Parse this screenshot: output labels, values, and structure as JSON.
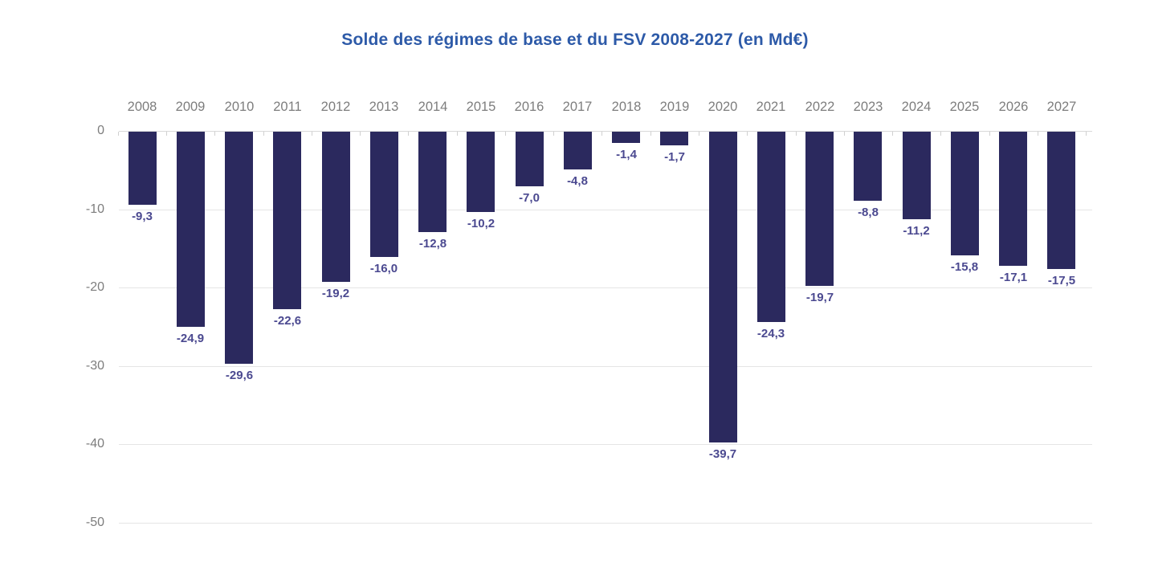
{
  "chart_data": {
    "type": "bar",
    "title": "Solde des régimes de base et du FSV 2008-2027 (en Md€)",
    "categories": [
      "2008",
      "2009",
      "2010",
      "2011",
      "2012",
      "2013",
      "2014",
      "2015",
      "2016",
      "2017",
      "2018",
      "2019",
      "2020",
      "2021",
      "2022",
      "2023",
      "2024",
      "2025",
      "2026",
      "2027"
    ],
    "values": [
      -9.3,
      -24.9,
      -29.6,
      -22.6,
      -19.2,
      -16.0,
      -12.8,
      -10.2,
      -7.0,
      -4.8,
      -1.4,
      -1.7,
      -39.7,
      -24.3,
      -19.7,
      -8.8,
      -11.2,
      -15.8,
      -17.1,
      -17.5
    ],
    "value_labels": [
      "-9,3",
      "-24,9",
      "-29,6",
      "-22,6",
      "-19,2",
      "-16,0",
      "-12,8",
      "-10,2",
      "-7,0",
      "-4,8",
      "-1,4",
      "-1,7",
      "-39,7",
      "-24,3",
      "-19,7",
      "-8,8",
      "-11,2",
      "-15,8",
      "-17,1",
      "-17,5"
    ],
    "xlabel": "",
    "ylabel": "",
    "ylim": [
      -50,
      0
    ],
    "ytick_values": [
      0,
      -10,
      -20,
      -30,
      -40,
      -50
    ],
    "ytick_labels": [
      "0",
      "-10",
      "-20",
      "-30",
      "-40",
      "-50"
    ],
    "grid": "horizontal",
    "legend_position": "none",
    "colors": {
      "bar": "#2b295e",
      "title": "#2d5aa8",
      "value_label": "#4b4990",
      "category_label": "#7d7d7d",
      "axis_label": "#7d7d7d",
      "gridline": "#e5e5e5",
      "zero_line": "#d8d8d8",
      "tick_mark": "#d0d0d0",
      "background": "#ffffff"
    }
  }
}
